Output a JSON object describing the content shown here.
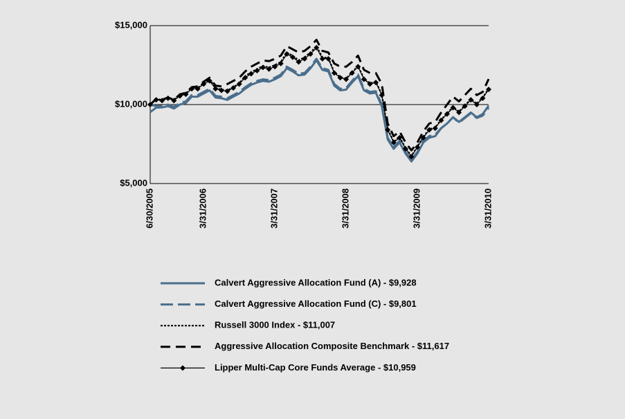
{
  "chart_data": {
    "type": "line",
    "categories": [
      "6/30/2005",
      null,
      null,
      null,
      null,
      null,
      null,
      null,
      null,
      "3/31/2006",
      null,
      null,
      null,
      null,
      null,
      null,
      null,
      null,
      null,
      null,
      null,
      "3/31/2007",
      null,
      null,
      null,
      null,
      null,
      null,
      null,
      null,
      null,
      null,
      null,
      "3/31/2008",
      null,
      null,
      null,
      null,
      null,
      null,
      null,
      null,
      null,
      null,
      null,
      "3/31/2009",
      null,
      null,
      null,
      null,
      null,
      null,
      null,
      null,
      null,
      null,
      null,
      "3/31/2010"
    ],
    "ylim": [
      5000,
      15000
    ],
    "yticks": [
      {
        "value": 5000,
        "label": "$5,000"
      },
      {
        "value": 10000,
        "label": "$10,000"
      },
      {
        "value": 15000,
        "label": "$15,000"
      }
    ],
    "grid": true,
    "series": [
      {
        "name": "Calvert Aggressive Allocation Fund (A) - $9,928",
        "color": "#4a6e8c",
        "style": "solid",
        "values": [
          9525,
          9800,
          9820,
          9900,
          9750,
          10000,
          10100,
          10500,
          10500,
          10700,
          10900,
          10450,
          10400,
          10300,
          10500,
          10700,
          11000,
          11250,
          11400,
          11500,
          11450,
          11600,
          11800,
          12300,
          12100,
          11850,
          11900,
          12300,
          12800,
          12200,
          12100,
          11200,
          10900,
          10950,
          11400,
          11800,
          10900,
          10700,
          10750,
          9900,
          7800,
          7200,
          7600,
          6900,
          6400,
          6900,
          7600,
          7900,
          8000,
          8500,
          8800,
          9200,
          8900,
          9200,
          9500,
          9200,
          9400,
          9928
        ]
      },
      {
        "name": "Calvert Aggressive Allocation Fund (C) - $9,801",
        "color": "#4a6e8c",
        "style": "dashed",
        "values": [
          10000,
          9900,
          9920,
          10000,
          9850,
          10100,
          10200,
          10600,
          10600,
          10800,
          11000,
          10550,
          10500,
          10400,
          10600,
          10800,
          11100,
          11350,
          11500,
          11600,
          11550,
          11700,
          11900,
          12400,
          12200,
          11950,
          12000,
          12400,
          12900,
          12300,
          12200,
          11300,
          11000,
          11050,
          11500,
          11900,
          11000,
          10800,
          10850,
          10000,
          7900,
          7300,
          7700,
          7000,
          6500,
          7000,
          7700,
          8000,
          8100,
          8500,
          8800,
          9200,
          8850,
          9150,
          9450,
          9150,
          9300,
          9801
        ]
      },
      {
        "name": "Russell 3000 Index - $11,007",
        "color": "#000000",
        "style": "dotted",
        "values": [
          10000,
          10350,
          10300,
          10450,
          10300,
          10600,
          10700,
          11050,
          11050,
          11350,
          11600,
          11050,
          10950,
          10900,
          11100,
          11350,
          11800,
          12050,
          12250,
          12450,
          12350,
          12500,
          12700,
          13300,
          13100,
          12800,
          13000,
          13300,
          13700,
          13000,
          12950,
          12050,
          11750,
          11650,
          12050,
          12450,
          11650,
          11350,
          11450,
          10650,
          8450,
          7650,
          7950,
          7250,
          6750,
          7350,
          7950,
          8450,
          8550,
          9050,
          9450,
          9850,
          9550,
          9950,
          10350,
          10050,
          10450,
          11007
        ]
      },
      {
        "name": "Aggressive Allocation Composite Benchmark - $11,617",
        "color": "#000000",
        "style": "dashed",
        "values": [
          10000,
          10350,
          10300,
          10450,
          10300,
          10650,
          10750,
          11100,
          11150,
          11450,
          11700,
          11200,
          11150,
          11300,
          11500,
          11700,
          12100,
          12400,
          12600,
          12800,
          12750,
          12900,
          13100,
          13700,
          13500,
          13300,
          13400,
          13700,
          14100,
          13400,
          13300,
          12600,
          12400,
          12400,
          12700,
          13100,
          12200,
          12000,
          12000,
          11300,
          8800,
          8000,
          8300,
          7600,
          7100,
          7600,
          8300,
          8800,
          8900,
          9500,
          10000,
          10500,
          10200,
          10600,
          11000,
          10600,
          10800,
          11617
        ]
      },
      {
        "name": "Lipper Multi-Cap Core Funds Average - $10,959",
        "color": "#000000",
        "style": "solid",
        "marker": "diamond",
        "values": [
          10000,
          10300,
          10250,
          10400,
          10250,
          10550,
          10650,
          11000,
          11000,
          11300,
          11500,
          11000,
          10900,
          10850,
          11050,
          11300,
          11700,
          11950,
          12150,
          12350,
          12250,
          12400,
          12600,
          13200,
          13000,
          12700,
          12900,
          13200,
          13600,
          12900,
          12900,
          12000,
          11700,
          11600,
          12000,
          12400,
          11600,
          11300,
          11400,
          10600,
          8400,
          7600,
          7900,
          7200,
          6700,
          7300,
          7900,
          8400,
          8500,
          9000,
          9400,
          9800,
          9500,
          9900,
          10300,
          10000,
          10400,
          10959
        ]
      }
    ]
  }
}
